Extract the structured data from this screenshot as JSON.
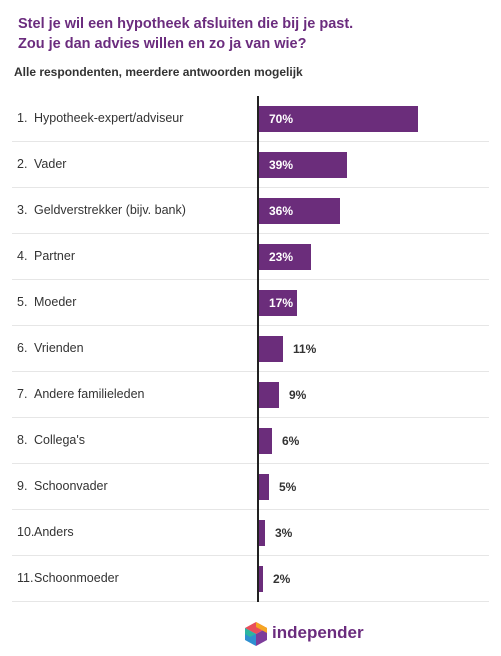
{
  "title_lines": [
    "Stel je wil een hypotheek afsluiten die bij je past.",
    "Zou je dan advies willen en zo ja van wie?"
  ],
  "subtitle": "Alle respondenten, meerdere antwoorden mogelijk",
  "brand": {
    "name": "independer",
    "logo_icon": "independer-logo-icon"
  },
  "colors": {
    "bar": "#6b2d7b",
    "title": "#6b2c7e",
    "text": "#333333",
    "separator": "#e6e6e6"
  },
  "chart_data": {
    "type": "bar",
    "orientation": "horizontal",
    "title": "Stel je wil een hypotheek afsluiten die bij je past. Zou je dan advies willen en zo ja van wie?",
    "subtitle": "Alle respondenten, meerdere antwoorden mogelijk",
    "numbers": [
      "1.",
      "2.",
      "3.",
      "4.",
      "5.",
      "6.",
      "7.",
      "8.",
      "9.",
      "10.",
      "11."
    ],
    "categories": [
      "Hypotheek-expert/adviseur",
      "Vader",
      "Geldverstrekker (bijv. bank)",
      "Partner",
      "Moeder",
      "Vrienden",
      "Andere familieleden",
      "Collega's",
      "Schoonvader",
      "Anders",
      "Schoonmoeder"
    ],
    "values": [
      70,
      39,
      36,
      23,
      17,
      11,
      9,
      6,
      5,
      3,
      2
    ],
    "labels": [
      "70%",
      "39%",
      "36%",
      "23%",
      "17%",
      "11%",
      "9%",
      "6%",
      "5%",
      "3%",
      "2%"
    ],
    "unit": "%",
    "xlim": [
      0,
      100
    ],
    "grid": false,
    "legend": "none"
  }
}
